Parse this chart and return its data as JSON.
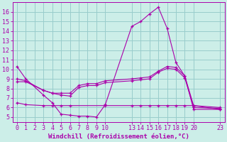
{
  "bg_color": "#cceee8",
  "grid_color": "#99cccc",
  "line_color": "#aa00aa",
  "xlabel": "Windchill (Refroidissement éolien,°C)",
  "xlabel_fontsize": 6.5,
  "tick_fontsize": 6,
  "xlim": [
    -0.5,
    23.5
  ],
  "ylim": [
    4.5,
    17.0
  ],
  "yticks": [
    5,
    6,
    7,
    8,
    9,
    10,
    11,
    12,
    13,
    14,
    15,
    16
  ],
  "xticks": [
    0,
    1,
    2,
    3,
    4,
    5,
    6,
    7,
    8,
    9,
    10,
    13,
    14,
    15,
    16,
    17,
    18,
    19,
    20,
    23
  ],
  "series1_x": [
    0,
    1,
    3,
    4,
    5,
    6,
    7,
    8,
    9,
    10,
    13,
    14,
    15,
    16,
    17,
    18,
    19,
    20,
    23
  ],
  "series1_y": [
    10.3,
    9.0,
    7.3,
    6.5,
    5.3,
    5.2,
    5.1,
    5.1,
    5.0,
    6.3,
    14.5,
    15.0,
    15.8,
    16.5,
    14.3,
    10.7,
    9.3,
    5.8,
    5.8
  ],
  "series2_x": [
    0,
    1,
    3,
    4,
    5,
    6,
    7,
    8,
    9,
    10,
    13,
    14,
    15,
    16,
    17,
    18,
    19,
    20,
    23
  ],
  "series2_y": [
    9.0,
    8.8,
    7.8,
    7.5,
    7.5,
    7.5,
    8.3,
    8.5,
    8.5,
    8.8,
    9.0,
    9.1,
    9.2,
    9.8,
    10.3,
    10.2,
    9.3,
    6.2,
    6.0
  ],
  "series3_x": [
    0,
    1,
    3,
    4,
    5,
    6,
    7,
    8,
    9,
    10,
    13,
    14,
    15,
    16,
    17,
    18,
    19,
    20,
    23
  ],
  "series3_y": [
    8.7,
    8.7,
    7.8,
    7.5,
    7.3,
    7.2,
    8.1,
    8.3,
    8.3,
    8.6,
    8.8,
    8.9,
    9.0,
    9.7,
    10.1,
    10.0,
    9.1,
    6.0,
    5.9
  ],
  "series4_x": [
    0,
    1,
    3,
    4,
    5,
    6,
    10,
    13,
    14,
    15,
    16,
    17,
    18,
    19,
    20,
    23
  ],
  "series4_y": [
    6.5,
    6.3,
    6.2,
    6.2,
    6.2,
    6.2,
    6.2,
    6.2,
    6.2,
    6.2,
    6.2,
    6.2,
    6.2,
    6.2,
    6.2,
    5.8
  ]
}
